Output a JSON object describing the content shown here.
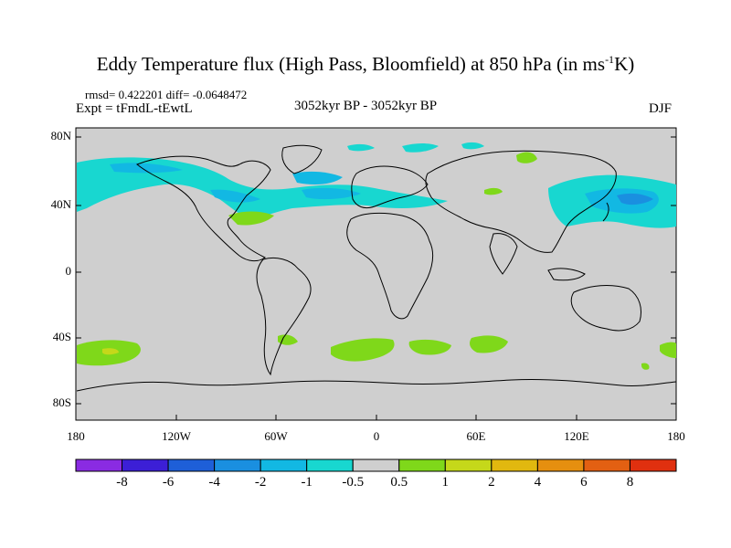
{
  "title": {
    "main": "Eddy Temperature flux (High Pass, Bloomfield) at 850 hPa (in ms",
    "sup": "-1",
    "end": "K)"
  },
  "stats": "rmsd= 0.422201 diff= -0.0648472",
  "experiment": "Expt = tFmdL-tEwtL",
  "period": "3052kyr BP - 3052kyr BP",
  "season": "DJF",
  "map": {
    "ocean_land_fill": "#cfcfcf",
    "lat_labels": [
      "80N",
      "40N",
      "0",
      "40S",
      "80S"
    ],
    "lon_labels": [
      "180",
      "120W",
      "60W",
      "0",
      "60E",
      "120E",
      "180"
    ]
  },
  "colorbar": {
    "colors": [
      "#8a2be2",
      "#3c1fd6",
      "#1e5fd8",
      "#1a8fe0",
      "#12b8e3",
      "#18d7d0",
      "#cfcfcf",
      "#7fd81a",
      "#c5d81a",
      "#e1b80f",
      "#e68f0f",
      "#e36012",
      "#e0300f"
    ],
    "labels": [
      "-8",
      "-6",
      "-4",
      "-2",
      "-1",
      "-0.5",
      "0.5",
      "1",
      "2",
      "4",
      "6",
      "8"
    ]
  }
}
